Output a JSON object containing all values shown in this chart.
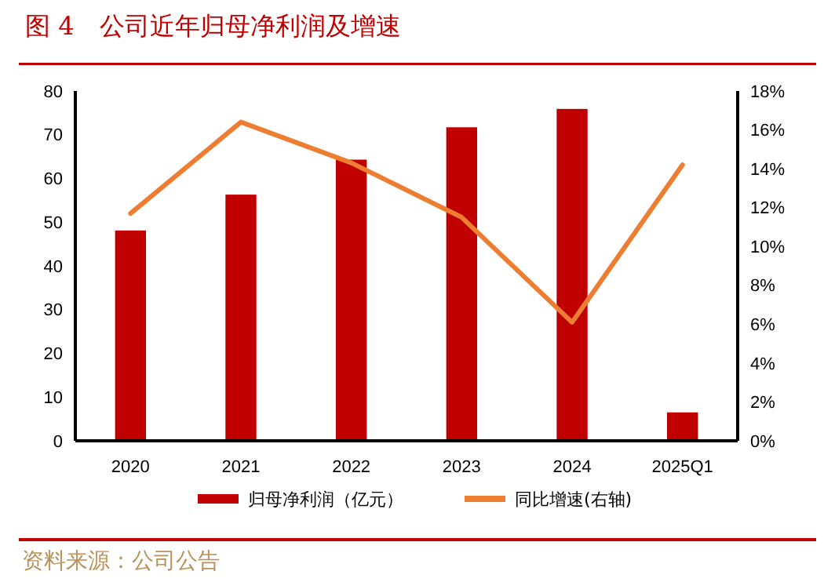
{
  "chart_data": {
    "type": "bar",
    "title": "图 4　公司近年归母净利润及增速",
    "categories": [
      "2020",
      "2021",
      "2022",
      "2023",
      "2024",
      "2025Q1"
    ],
    "series": [
      {
        "name": "归母净利润（亿元）",
        "color": "#c00000",
        "values": [
          48.1,
          56.3,
          64.3,
          71.7,
          75.9,
          6.5
        ]
      },
      {
        "name": "同比增速(右轴)",
        "type": "line",
        "axis": "y2",
        "color": "#ed7d31",
        "values": [
          11.7,
          16.4,
          14.3,
          11.5,
          6.1,
          14.2
        ]
      }
    ],
    "ylim": [
      0,
      80
    ],
    "yticks": [
      0,
      10,
      20,
      30,
      40,
      50,
      60,
      70,
      80
    ],
    "y2lim": [
      0,
      18
    ],
    "y2ticks": [
      {
        "value": 0,
        "label": "0%"
      },
      {
        "value": 2,
        "label": "2%"
      },
      {
        "value": 4,
        "label": "4%"
      },
      {
        "value": 6,
        "label": "6%"
      },
      {
        "value": 8,
        "label": "8%"
      },
      {
        "value": 10,
        "label": "10%"
      },
      {
        "value": 12,
        "label": "12%"
      },
      {
        "value": 14,
        "label": "14%"
      },
      {
        "value": 16,
        "label": "16%"
      },
      {
        "value": 18,
        "label": "18%"
      }
    ],
    "legend": "bottom",
    "grid": false,
    "annotations": [
      "资料来源：公司公告"
    ]
  }
}
